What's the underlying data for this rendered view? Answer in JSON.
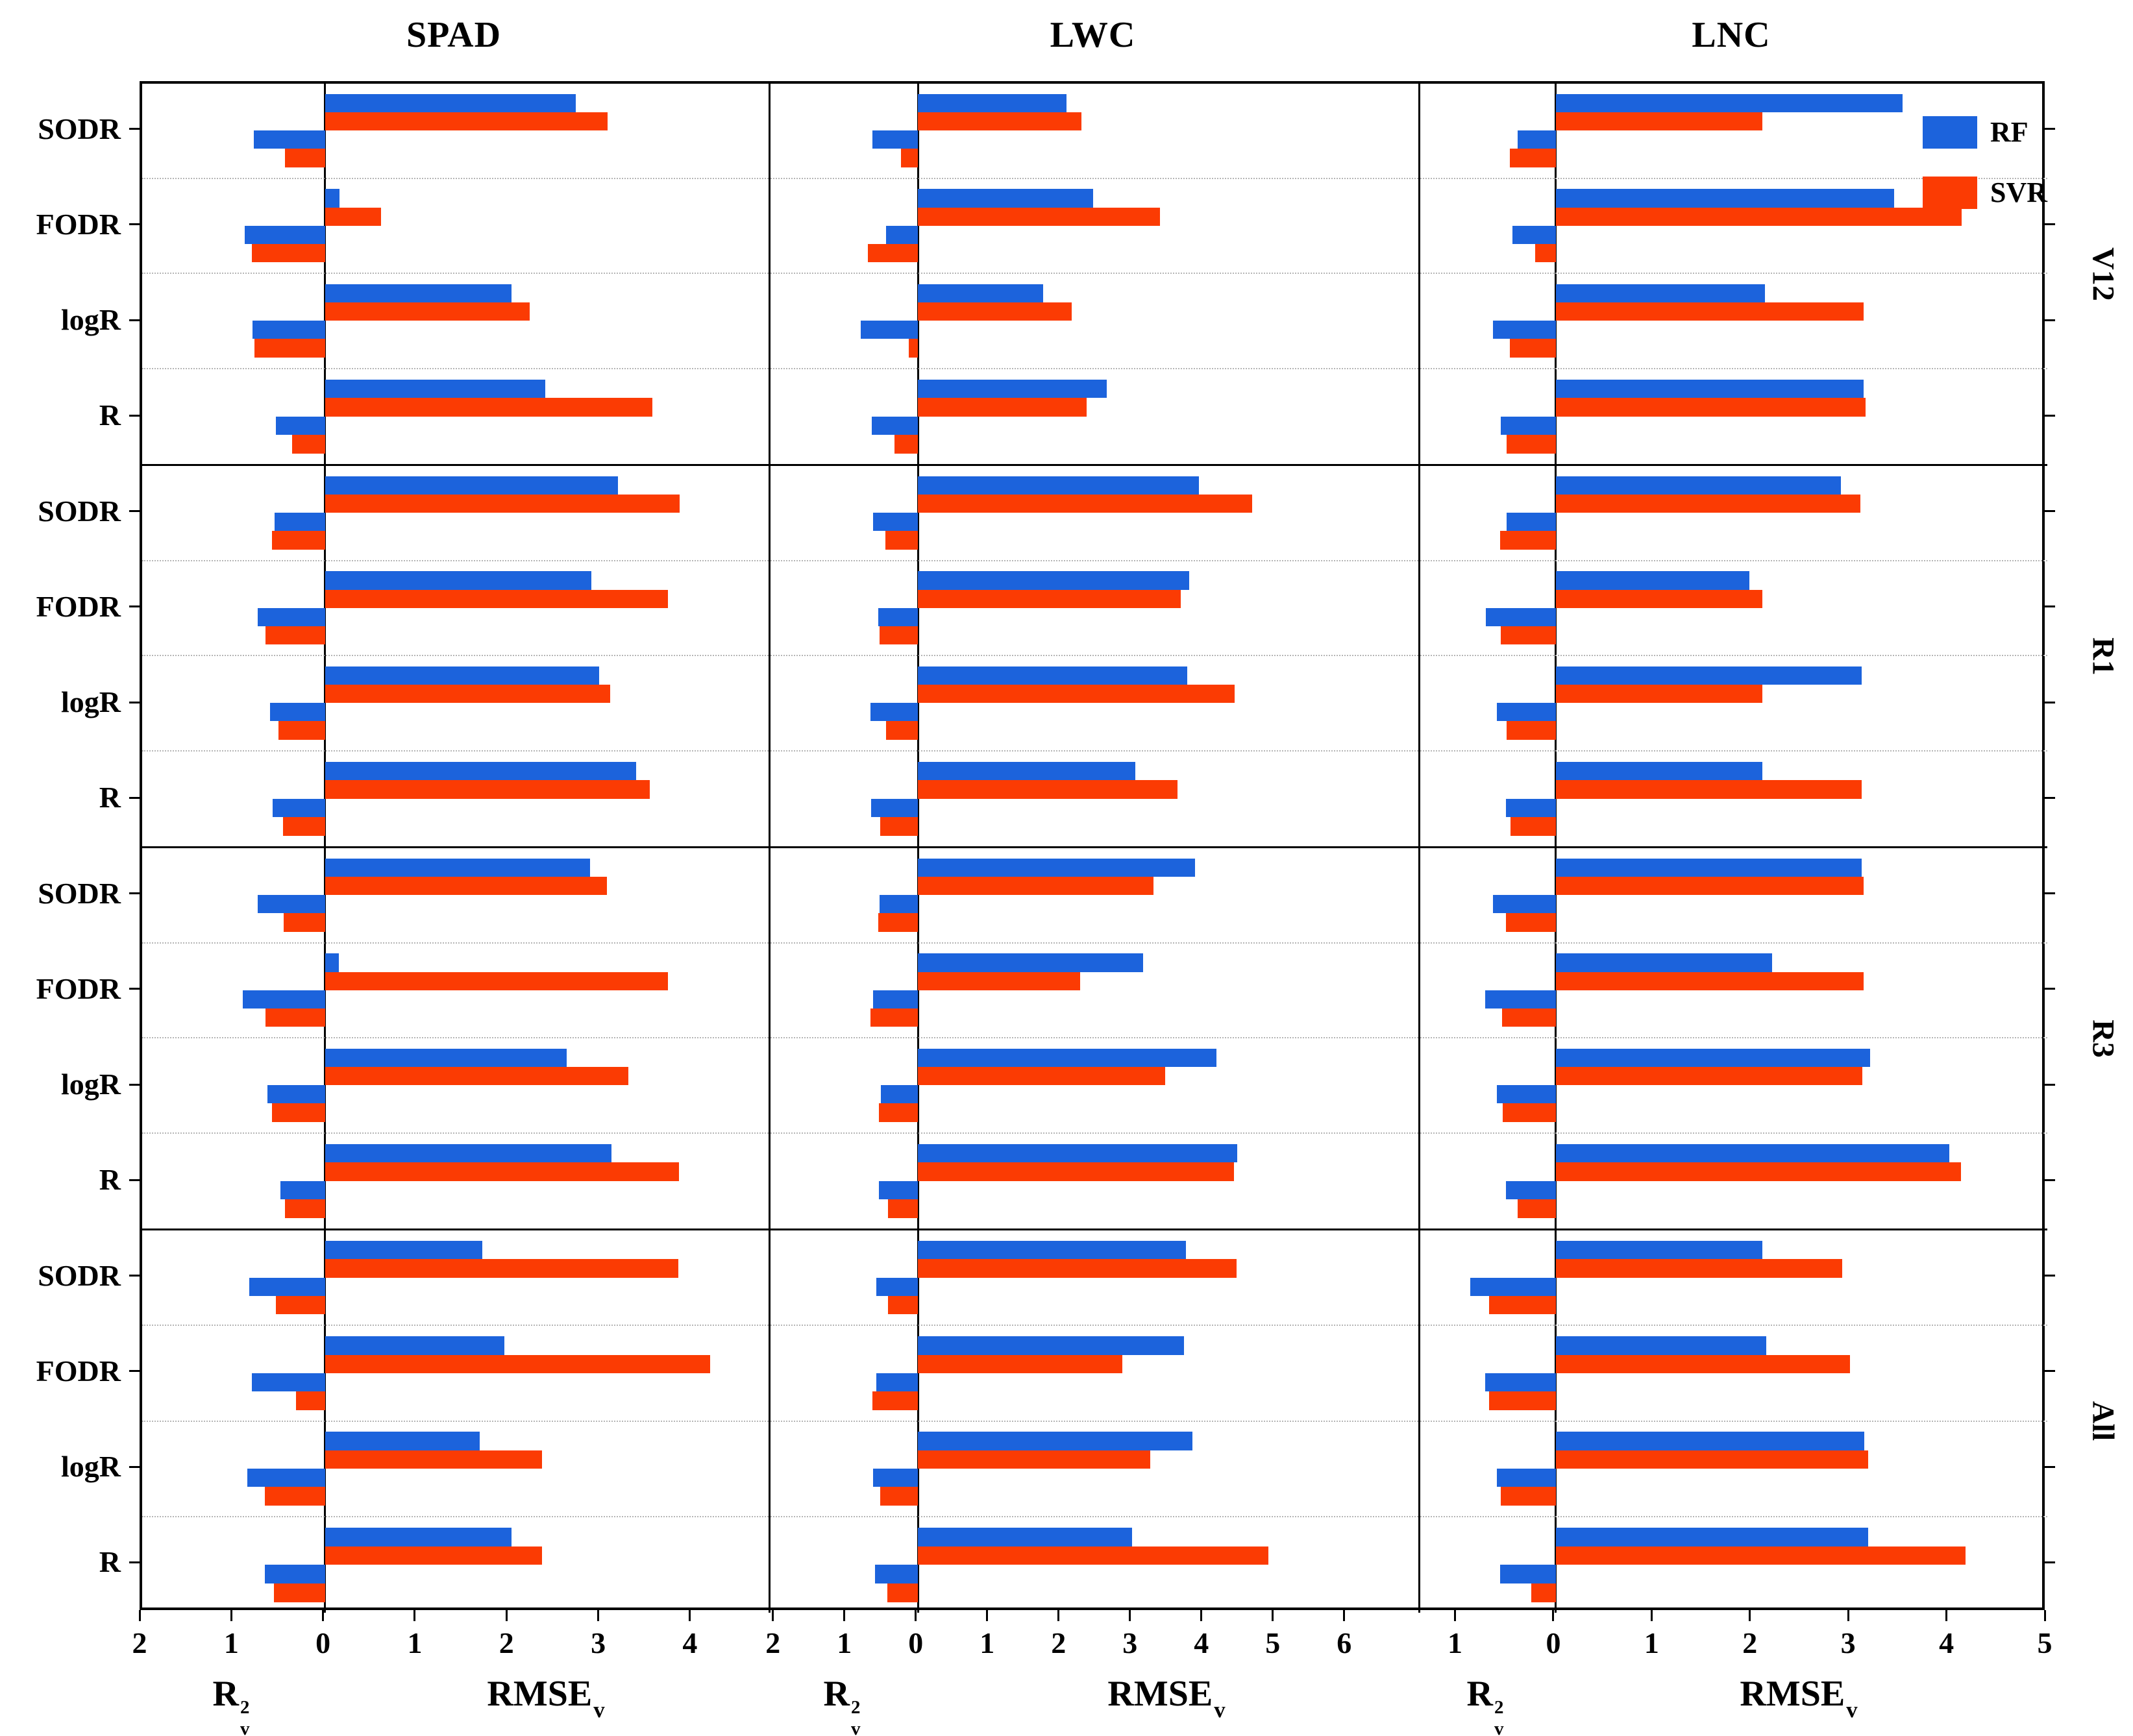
{
  "legend": {
    "items": [
      {
        "label": "RF",
        "color": "#1C63DC"
      },
      {
        "label": "SVR",
        "color": "#FB3B03"
      }
    ]
  },
  "axis_titles": {
    "left": {
      "base": "R",
      "sup": "2",
      "sub": "v"
    },
    "right": {
      "base": "RMSE",
      "sub": "v"
    }
  },
  "chart_data": {
    "type": "bar",
    "orientation": "horizontal-diverging",
    "grid": "dotted-between-categories",
    "legend_position": "top-right-inside-last-panel",
    "series": [
      {
        "name": "RF",
        "color": "#1C63DC"
      },
      {
        "name": "SVR",
        "color": "#FB3B03"
      }
    ],
    "rows": [
      "V12",
      "R1",
      "R3",
      "All"
    ],
    "categories": [
      "SODR",
      "FODR",
      "logR",
      "R"
    ],
    "xlabel_left": "R2v (coefficient of determination, bars extend left)",
    "xlabel_right": "RMSEv (bars extend right)",
    "columns": [
      {
        "title": "SPAD",
        "r2_axis_max": 2.0,
        "rmse_axis_max": 4.85,
        "r2_ticks": [
          2,
          1
        ],
        "rmse_ticks": [
          1,
          2,
          3,
          4
        ],
        "values": {
          "V12": [
            {
              "category": "SODR",
              "rf": {
                "rmse": 2.74,
                "r2": 0.78
              },
              "svr": {
                "rmse": 3.09,
                "r2": 0.44
              }
            },
            {
              "category": "FODR",
              "rf": {
                "rmse": 0.16,
                "r2": 0.88
              },
              "svr": {
                "rmse": 0.61,
                "r2": 0.8
              }
            },
            {
              "category": "logR",
              "rf": {
                "rmse": 2.04,
                "r2": 0.79
              },
              "svr": {
                "rmse": 2.24,
                "r2": 0.77
              }
            },
            {
              "category": "R",
              "rf": {
                "rmse": 2.41,
                "r2": 0.54
              },
              "svr": {
                "rmse": 3.58,
                "r2": 0.36
              }
            }
          ],
          "R1": [
            {
              "category": "SODR",
              "rf": {
                "rmse": 3.2,
                "r2": 0.55
              },
              "svr": {
                "rmse": 3.88,
                "r2": 0.58
              }
            },
            {
              "category": "FODR",
              "rf": {
                "rmse": 2.91,
                "r2": 0.74
              },
              "svr": {
                "rmse": 3.75,
                "r2": 0.65
              }
            },
            {
              "category": "logR",
              "rf": {
                "rmse": 3.0,
                "r2": 0.6
              },
              "svr": {
                "rmse": 3.12,
                "r2": 0.51
              }
            },
            {
              "category": "R",
              "rf": {
                "rmse": 3.4,
                "r2": 0.57
              },
              "svr": {
                "rmse": 3.55,
                "r2": 0.46
              }
            }
          ],
          "R3": [
            {
              "category": "SODR",
              "rf": {
                "rmse": 2.9,
                "r2": 0.74
              },
              "svr": {
                "rmse": 3.08,
                "r2": 0.45
              }
            },
            {
              "category": "FODR",
              "rf": {
                "rmse": 0.15,
                "r2": 0.9
              },
              "svr": {
                "rmse": 3.75,
                "r2": 0.65
              }
            },
            {
              "category": "logR",
              "rf": {
                "rmse": 2.64,
                "r2": 0.63
              },
              "svr": {
                "rmse": 3.32,
                "r2": 0.58
              }
            },
            {
              "category": "R",
              "rf": {
                "rmse": 3.13,
                "r2": 0.49
              },
              "svr": {
                "rmse": 3.87,
                "r2": 0.44
              }
            }
          ],
          "All": [
            {
              "category": "SODR",
              "rf": {
                "rmse": 1.72,
                "r2": 0.83
              },
              "svr": {
                "rmse": 3.86,
                "r2": 0.54
              }
            },
            {
              "category": "FODR",
              "rf": {
                "rmse": 1.96,
                "r2": 0.8
              },
              "svr": {
                "rmse": 4.21,
                "r2": 0.32
              }
            },
            {
              "category": "logR",
              "rf": {
                "rmse": 1.69,
                "r2": 0.85
              },
              "svr": {
                "rmse": 2.37,
                "r2": 0.66
              }
            },
            {
              "category": "R",
              "rf": {
                "rmse": 2.04,
                "r2": 0.66
              },
              "svr": {
                "rmse": 2.37,
                "r2": 0.56
              }
            }
          ]
        }
      },
      {
        "title": "LWC",
        "r2_axis_max": 2.07,
        "rmse_axis_max": 7.03,
        "r2_ticks": [
          2,
          1
        ],
        "rmse_ticks": [
          1,
          2,
          3,
          4,
          5,
          6
        ],
        "values": {
          "V12": [
            {
              "category": "SODR",
              "rf": {
                "rmse": 2.09,
                "r2": 0.64
              },
              "svr": {
                "rmse": 2.3,
                "r2": 0.24
              }
            },
            {
              "category": "FODR",
              "rf": {
                "rmse": 2.46,
                "r2": 0.45
              },
              "svr": {
                "rmse": 3.4,
                "r2": 0.7
              }
            },
            {
              "category": "logR",
              "rf": {
                "rmse": 1.76,
                "r2": 0.8
              },
              "svr": {
                "rmse": 2.16,
                "r2": 0.13
              }
            },
            {
              "category": "R",
              "rf": {
                "rmse": 2.65,
                "r2": 0.65
              },
              "svr": {
                "rmse": 2.37,
                "r2": 0.33
              }
            }
          ],
          "R1": [
            {
              "category": "SODR",
              "rf": {
                "rmse": 3.95,
                "r2": 0.63
              },
              "svr": {
                "rmse": 4.7,
                "r2": 0.46
              }
            },
            {
              "category": "FODR",
              "rf": {
                "rmse": 3.81,
                "r2": 0.56
              },
              "svr": {
                "rmse": 3.69,
                "r2": 0.54
              }
            },
            {
              "category": "logR",
              "rf": {
                "rmse": 3.78,
                "r2": 0.67
              },
              "svr": {
                "rmse": 4.45,
                "r2": 0.45
              }
            },
            {
              "category": "R",
              "rf": {
                "rmse": 3.05,
                "r2": 0.66
              },
              "svr": {
                "rmse": 3.65,
                "r2": 0.53
              }
            }
          ],
          "R3": [
            {
              "category": "SODR",
              "rf": {
                "rmse": 3.89,
                "r2": 0.54
              },
              "svr": {
                "rmse": 3.31,
                "r2": 0.56
              }
            },
            {
              "category": "FODR",
              "rf": {
                "rmse": 3.16,
                "r2": 0.63
              },
              "svr": {
                "rmse": 2.28,
                "r2": 0.67
              }
            },
            {
              "category": "logR",
              "rf": {
                "rmse": 4.19,
                "r2": 0.52
              },
              "svr": {
                "rmse": 3.47,
                "r2": 0.55
              }
            },
            {
              "category": "R",
              "rf": {
                "rmse": 4.49,
                "r2": 0.55
              },
              "svr": {
                "rmse": 4.44,
                "r2": 0.42
              }
            }
          ],
          "All": [
            {
              "category": "SODR",
              "rf": {
                "rmse": 3.77,
                "r2": 0.58
              },
              "svr": {
                "rmse": 4.48,
                "r2": 0.42
              }
            },
            {
              "category": "FODR",
              "rf": {
                "rmse": 3.74,
                "r2": 0.58
              },
              "svr": {
                "rmse": 2.87,
                "r2": 0.64
              }
            },
            {
              "category": "logR",
              "rf": {
                "rmse": 3.86,
                "r2": 0.63
              },
              "svr": {
                "rmse": 3.26,
                "r2": 0.53
              }
            },
            {
              "category": "R",
              "rf": {
                "rmse": 3.01,
                "r2": 0.6
              },
              "svr": {
                "rmse": 4.92,
                "r2": 0.43
              }
            }
          ]
        }
      },
      {
        "title": "LNC",
        "r2_axis_max": 1.38,
        "rmse_axis_max": 5.0,
        "r2_ticks": [
          1
        ],
        "rmse_ticks": [
          1,
          2,
          3,
          4,
          5
        ],
        "values": {
          "V12": [
            {
              "category": "SODR",
              "rf": {
                "rmse": 3.53,
                "r2": 0.39
              },
              "svr": {
                "rmse": 2.1,
                "r2": 0.47
              }
            },
            {
              "category": "FODR",
              "rf": {
                "rmse": 3.44,
                "r2": 0.44
              },
              "svr": {
                "rmse": 4.13,
                "r2": 0.21
              }
            },
            {
              "category": "logR",
              "rf": {
                "rmse": 2.13,
                "r2": 0.64
              },
              "svr": {
                "rmse": 3.13,
                "r2": 0.47
              }
            },
            {
              "category": "R",
              "rf": {
                "rmse": 3.13,
                "r2": 0.56
              },
              "svr": {
                "rmse": 3.15,
                "r2": 0.5
              }
            }
          ],
          "R1": [
            {
              "category": "SODR",
              "rf": {
                "rmse": 2.9,
                "r2": 0.5
              },
              "svr": {
                "rmse": 3.1,
                "r2": 0.57
              }
            },
            {
              "category": "FODR",
              "rf": {
                "rmse": 1.97,
                "r2": 0.71
              },
              "svr": {
                "rmse": 2.1,
                "r2": 0.56
              }
            },
            {
              "category": "logR",
              "rf": {
                "rmse": 3.11,
                "r2": 0.6
              },
              "svr": {
                "rmse": 2.1,
                "r2": 0.5
              }
            },
            {
              "category": "R",
              "rf": {
                "rmse": 2.1,
                "r2": 0.51
              },
              "svr": {
                "rmse": 3.11,
                "r2": 0.46
              }
            }
          ],
          "R3": [
            {
              "category": "SODR",
              "rf": {
                "rmse": 3.11,
                "r2": 0.64
              },
              "svr": {
                "rmse": 3.13,
                "r2": 0.51
              }
            },
            {
              "category": "FODR",
              "rf": {
                "rmse": 2.2,
                "r2": 0.72
              },
              "svr": {
                "rmse": 3.13,
                "r2": 0.55
              }
            },
            {
              "category": "logR",
              "rf": {
                "rmse": 3.2,
                "r2": 0.6
              },
              "svr": {
                "rmse": 3.12,
                "r2": 0.54
              }
            },
            {
              "category": "R",
              "rf": {
                "rmse": 4.0,
                "r2": 0.51
              },
              "svr": {
                "rmse": 4.12,
                "r2": 0.39
              }
            }
          ],
          "All": [
            {
              "category": "SODR",
              "rf": {
                "rmse": 2.1,
                "r2": 0.87
              },
              "svr": {
                "rmse": 2.91,
                "r2": 0.68
              }
            },
            {
              "category": "FODR",
              "rf": {
                "rmse": 2.14,
                "r2": 0.72
              },
              "svr": {
                "rmse": 2.99,
                "r2": 0.68
              }
            },
            {
              "category": "logR",
              "rf": {
                "rmse": 3.14,
                "r2": 0.6
              },
              "svr": {
                "rmse": 3.18,
                "r2": 0.56
              }
            },
            {
              "category": "R",
              "rf": {
                "rmse": 3.18,
                "r2": 0.57
              },
              "svr": {
                "rmse": 4.17,
                "r2": 0.25
              }
            }
          ]
        }
      }
    ]
  }
}
